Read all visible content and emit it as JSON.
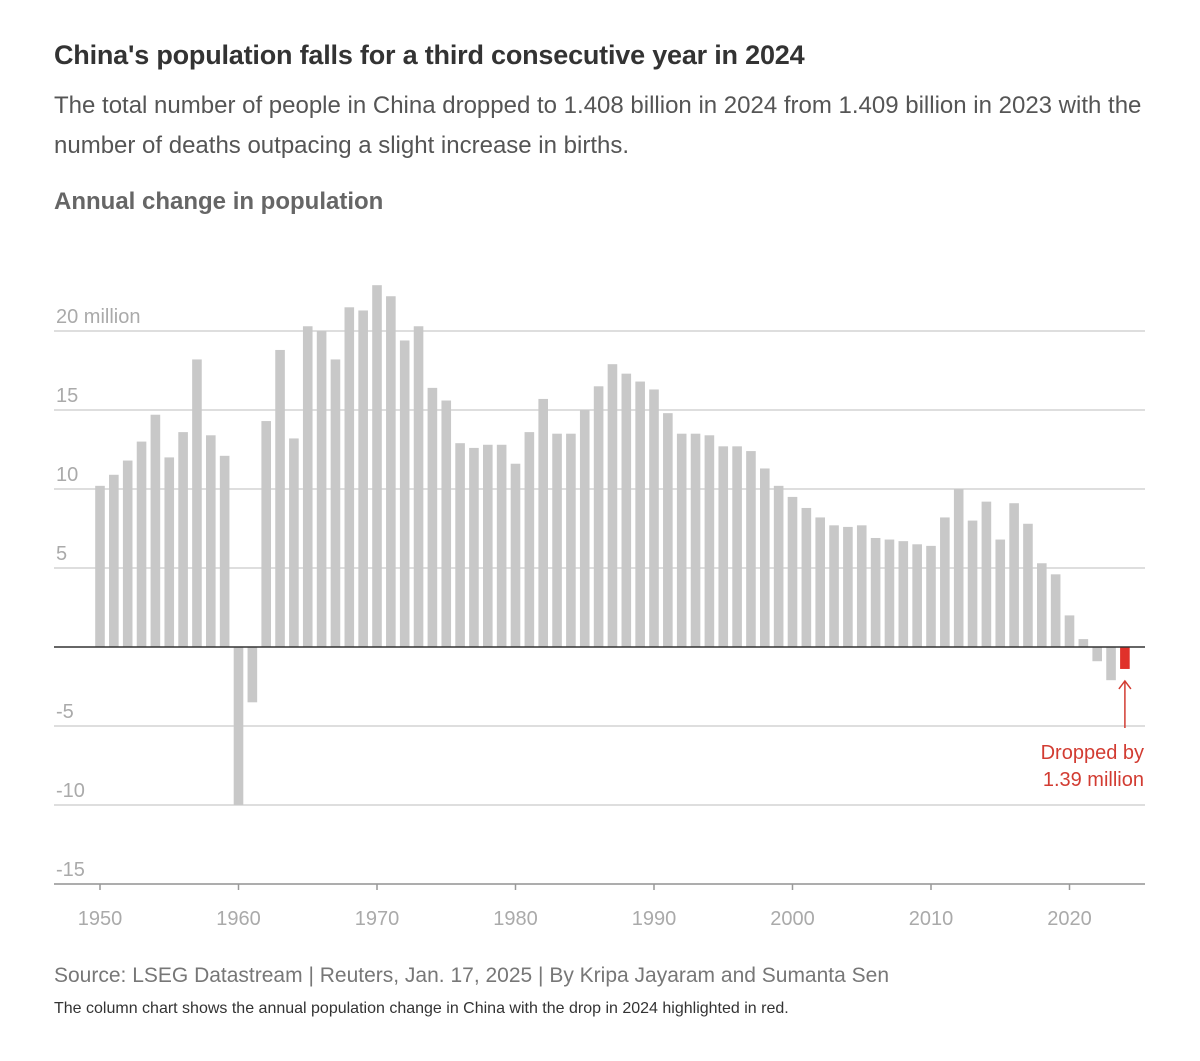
{
  "header": {
    "title": "China's population falls for a third consecutive year in 2024",
    "subtitle": "The total number of people in China dropped to 1.408 billion in 2024 from 1.409 billion in 2023 with the number of deaths outpacing a slight increase in births."
  },
  "footer": {
    "source": "Source: LSEG Datastream | Reuters, Jan. 17, 2025 | By Kripa Jayaram and Sumanta Sen",
    "note": "The column chart shows the annual population change in China with the drop in 2024 highlighted in red."
  },
  "colors": {
    "bar": "#c8c8c8",
    "highlight": "#e0312a",
    "annotation": "#d23c32",
    "grid": "#d4d4d4",
    "zero_line": "#333333",
    "tick_text": "#aaaaaa"
  },
  "chart_data": {
    "type": "bar",
    "title": "Annual change in population",
    "unit": "million",
    "ylim": [
      -15,
      22
    ],
    "y_ticks": [
      {
        "value": 20,
        "label": "20 million"
      },
      {
        "value": 15,
        "label": "15"
      },
      {
        "value": 10,
        "label": "10"
      },
      {
        "value": 5,
        "label": "5"
      },
      {
        "value": 0,
        "label": ""
      },
      {
        "value": -5,
        "label": "-5"
      },
      {
        "value": -10,
        "label": "-10"
      },
      {
        "value": -15,
        "label": "-15"
      }
    ],
    "x_ticks": [
      1950,
      1960,
      1970,
      1980,
      1990,
      2000,
      2010,
      2020
    ],
    "x_range": [
      1950,
      2024
    ],
    "grid": true,
    "highlight_year": 2024,
    "years": [
      1950,
      1951,
      1952,
      1953,
      1954,
      1955,
      1956,
      1957,
      1958,
      1959,
      1960,
      1961,
      1962,
      1963,
      1964,
      1965,
      1966,
      1967,
      1968,
      1969,
      1970,
      1971,
      1972,
      1973,
      1974,
      1975,
      1976,
      1977,
      1978,
      1979,
      1980,
      1981,
      1982,
      1983,
      1984,
      1985,
      1986,
      1987,
      1988,
      1989,
      1990,
      1991,
      1992,
      1993,
      1994,
      1995,
      1996,
      1997,
      1998,
      1999,
      2000,
      2001,
      2002,
      2003,
      2004,
      2005,
      2006,
      2007,
      2008,
      2009,
      2010,
      2011,
      2012,
      2013,
      2014,
      2015,
      2016,
      2017,
      2018,
      2019,
      2020,
      2021,
      2022,
      2023,
      2024
    ],
    "values": [
      10.2,
      10.9,
      11.8,
      13.0,
      14.7,
      12.0,
      13.6,
      18.2,
      13.4,
      12.1,
      -10.0,
      -3.5,
      14.3,
      18.8,
      13.2,
      20.3,
      20.0,
      18.2,
      21.5,
      21.3,
      22.9,
      22.2,
      19.4,
      20.3,
      16.4,
      15.6,
      12.9,
      12.6,
      12.8,
      12.8,
      11.6,
      13.6,
      15.7,
      13.5,
      13.5,
      15.0,
      16.5,
      17.9,
      17.3,
      16.8,
      16.3,
      14.8,
      13.5,
      13.5,
      13.4,
      12.7,
      12.7,
      12.4,
      11.3,
      10.2,
      9.5,
      8.8,
      8.2,
      7.7,
      7.6,
      7.7,
      6.9,
      6.8,
      6.7,
      6.5,
      6.4,
      8.2,
      10.0,
      8.0,
      9.2,
      6.8,
      9.1,
      7.8,
      5.3,
      4.6,
      2.0,
      0.5,
      -0.9,
      -2.1,
      -1.39
    ],
    "annotation": {
      "year": 2024,
      "lines": [
        "Dropped by",
        "1.39 million"
      ]
    }
  }
}
